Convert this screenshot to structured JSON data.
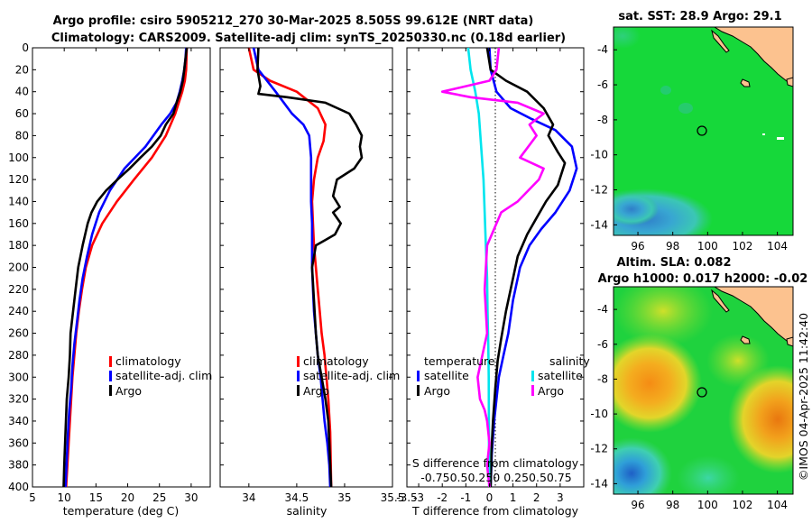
{
  "title_line1": "Argo profile: csiro 5905212_270 30-Mar-2025 8.505S 99.612E (NRT data)",
  "title_line2": "Climatology: CARS2009. Satellite-adj clim: synTS_20250330.nc (0.18d earlier)",
  "chart_data": [
    {
      "type": "line",
      "name": "temperature",
      "xlabel": "temperature (deg C)",
      "ylabel": "",
      "xlim": [
        5,
        33
      ],
      "ylim": [
        0,
        400
      ],
      "xticks": [
        5,
        10,
        15,
        20,
        25,
        30
      ],
      "yticks": [
        0,
        20,
        40,
        60,
        80,
        100,
        120,
        140,
        160,
        180,
        200,
        220,
        240,
        260,
        280,
        300,
        320,
        340,
        360,
        380,
        400
      ],
      "legend": [
        "climatology",
        "satellite-adj. clim",
        "Argo"
      ],
      "series": [
        {
          "name": "climatology",
          "color": "#ff0000",
          "x": [
            29.3,
            29.2,
            29.0,
            28.6,
            27.5,
            26.0,
            23.8,
            21.0,
            18.3,
            16.0,
            14.4,
            13.4,
            12.8,
            12.3,
            11.9,
            11.6,
            11.3,
            11.1,
            10.9,
            10.7,
            10.5,
            10.3
          ],
          "y": [
            0,
            20,
            30,
            40,
            60,
            80,
            100,
            120,
            140,
            160,
            180,
            200,
            220,
            240,
            260,
            280,
            300,
            320,
            340,
            360,
            380,
            400
          ]
        },
        {
          "name": "satellite-adj. clim",
          "color": "#0000ff",
          "x": [
            29.2,
            29.1,
            28.9,
            28.6,
            28.2,
            27.7,
            26.7,
            25.3,
            22.8,
            19.5,
            17.2,
            15.5,
            14.4,
            13.6,
            12.9,
            12.4,
            12.0,
            11.6,
            11.3,
            11.1,
            10.8,
            10.6,
            10.4,
            10.2
          ],
          "y": [
            0,
            10,
            20,
            30,
            40,
            50,
            60,
            70,
            90,
            110,
            130,
            150,
            170,
            190,
            210,
            230,
            250,
            270,
            290,
            310,
            330,
            350,
            375,
            400
          ]
        },
        {
          "name": "Argo",
          "color": "#000000",
          "x": [
            29.3,
            29.1,
            28.9,
            28.7,
            28.3,
            27.7,
            27.2,
            26.0,
            25.2,
            23.8,
            22.0,
            20.3,
            18.4,
            16.6,
            15.2,
            14.3,
            13.7,
            12.9,
            12.2,
            11.8,
            11.4,
            11.0,
            10.9,
            10.7,
            10.4,
            10.2,
            10.0,
            9.9
          ],
          "y": [
            0,
            10,
            20,
            30,
            40,
            50,
            60,
            70,
            80,
            90,
            100,
            110,
            120,
            130,
            140,
            150,
            160,
            180,
            200,
            220,
            240,
            260,
            280,
            300,
            320,
            350,
            380,
            400
          ]
        }
      ]
    },
    {
      "type": "line",
      "name": "salinity",
      "xlabel": "salinity",
      "xlim": [
        33.7,
        35.5
      ],
      "ylim": [
        0,
        400
      ],
      "xticks": [
        34,
        34.5,
        35
      ],
      "xtick_labels": [
        "34",
        "34.5",
        "35"
      ],
      "legend": [
        "climatology",
        "satellite-adj. clim",
        "Argo"
      ],
      "series": [
        {
          "name": "climatology",
          "color": "#ff0000",
          "x": [
            34.0,
            34.05,
            34.22,
            34.5,
            34.72,
            34.8,
            34.78,
            34.72,
            34.68,
            34.66,
            34.67,
            34.68,
            34.7,
            34.72,
            34.74,
            34.76,
            34.79,
            34.81,
            34.83,
            34.85,
            34.86
          ],
          "y": [
            0,
            20,
            30,
            40,
            55,
            70,
            85,
            100,
            120,
            140,
            160,
            180,
            200,
            220,
            240,
            260,
            280,
            300,
            320,
            350,
            400
          ]
        },
        {
          "name": "satellite-adj. clim",
          "color": "#0000ff",
          "x": [
            34.05,
            34.1,
            34.28,
            34.45,
            34.57,
            34.63,
            34.65,
            34.65,
            34.65,
            34.66,
            34.66,
            34.66,
            34.67,
            34.68,
            34.7,
            34.72,
            34.75,
            34.77,
            34.79,
            34.82,
            34.84,
            34.85
          ],
          "y": [
            0,
            20,
            40,
            60,
            70,
            80,
            100,
            120,
            140,
            160,
            180,
            200,
            220,
            240,
            260,
            280,
            300,
            320,
            340,
            360,
            380,
            400
          ]
        },
        {
          "name": "Argo",
          "color": "#000000",
          "x": [
            34.1,
            34.09,
            34.12,
            34.1,
            34.4,
            34.8,
            35.05,
            35.12,
            35.18,
            35.16,
            35.18,
            35.1,
            34.92,
            34.88,
            34.95,
            34.88,
            34.96,
            34.9,
            34.8,
            34.7,
            34.66,
            34.68,
            34.7,
            34.72,
            34.76,
            34.8,
            34.83,
            34.84,
            34.85,
            34.86
          ],
          "y": [
            0,
            20,
            35,
            42,
            45,
            50,
            60,
            70,
            80,
            90,
            100,
            110,
            120,
            135,
            145,
            150,
            160,
            170,
            175,
            180,
            200,
            230,
            260,
            280,
            300,
            320,
            340,
            360,
            380,
            400
          ]
        }
      ]
    },
    {
      "type": "line",
      "name": "difference",
      "xlabel": "T difference from climatology",
      "xlim": [
        -3.5,
        4
      ],
      "ylim": [
        0,
        400
      ],
      "xticks": [
        -3,
        -2,
        -1,
        0,
        1,
        2,
        3
      ],
      "xtick_labels": [
        "-3",
        "-2",
        "-1",
        "0",
        "1",
        "2",
        "3"
      ],
      "top_label": "S difference from climatology",
      "top_ticks": "-0.750.50.250 0.250.50.75",
      "legend_left_title": "temperature",
      "legend_right_title": "salinity",
      "legend": [
        "satellite",
        "Argo",
        "satellite",
        "Argo"
      ],
      "series": [
        {
          "name": "temperature satellite",
          "color": "#0000ff",
          "x": [
            0.0,
            0.05,
            0.3,
            0.9,
            1.8,
            2.8,
            3.5,
            3.7,
            3.4,
            2.8,
            2.2,
            1.7,
            1.3,
            1.0,
            0.8,
            0.6,
            0.4,
            0.3,
            0.2,
            0.1,
            0.05
          ],
          "y": [
            0,
            20,
            40,
            55,
            65,
            75,
            90,
            110,
            130,
            150,
            165,
            180,
            200,
            230,
            260,
            280,
            300,
            320,
            340,
            370,
            400
          ]
        },
        {
          "name": "temperature Argo",
          "color": "#000000",
          "x": [
            -0.1,
            0.05,
            0.7,
            1.6,
            2.3,
            2.7,
            2.5,
            2.9,
            3.2,
            2.9,
            2.4,
            2.0,
            1.6,
            1.2,
            1.0,
            0.7,
            0.5,
            0.35,
            0.25,
            0.15,
            0.08,
            0.05
          ],
          "y": [
            0,
            20,
            30,
            40,
            55,
            70,
            80,
            95,
            105,
            125,
            140,
            155,
            170,
            190,
            210,
            240,
            265,
            285,
            310,
            340,
            370,
            400
          ]
        },
        {
          "name": "salinity satellite",
          "color": "#00e5ee",
          "x": [
            -0.9,
            -0.8,
            -0.6,
            -0.45,
            -0.35,
            -0.25,
            -0.2,
            -0.15,
            -0.1,
            -0.08,
            -0.05,
            -0.03,
            -0.02,
            -0.01
          ],
          "y": [
            0,
            20,
            40,
            60,
            90,
            120,
            150,
            180,
            210,
            240,
            270,
            300,
            350,
            400
          ]
        },
        {
          "name": "salinity Argo",
          "color": "#ff00ff",
          "x": [
            0.4,
            0.3,
            0.0,
            -2.0,
            -0.8,
            1.2,
            2.3,
            1.7,
            2.0,
            1.3,
            2.3,
            2.1,
            1.2,
            0.5,
            -0.1,
            -0.2,
            -0.1,
            -0.5,
            -0.4,
            -0.2,
            -0.1,
            0.0,
            -0.1,
            0.0
          ],
          "y": [
            0,
            20,
            30,
            40,
            45,
            50,
            60,
            70,
            80,
            100,
            110,
            120,
            140,
            150,
            180,
            220,
            260,
            300,
            320,
            330,
            340,
            360,
            380,
            400
          ]
        }
      ]
    },
    {
      "type": "heatmap",
      "name": "sst_map",
      "title": "sat. SST: 28.9 Argo: 29.1",
      "xticks": [
        96,
        98,
        100,
        102,
        104
      ],
      "yticks": [
        -4,
        -6,
        -8,
        -10,
        -12,
        -14
      ],
      "xlim": [
        94.6,
        104.9
      ],
      "ylim": [
        -14.6,
        -2.7
      ],
      "argo_position": [
        99.612,
        -8.505
      ]
    },
    {
      "type": "heatmap",
      "name": "sla_map",
      "title_line1": "Altim. SLA: 0.082",
      "title_line2": "Argo h1000: 0.017 h2000: -0.02",
      "xticks": [
        96,
        98,
        100,
        102,
        104
      ],
      "yticks": [
        -4,
        -6,
        -8,
        -10,
        -12,
        -14
      ],
      "xlim": [
        94.6,
        104.9
      ],
      "ylim": [
        -14.6,
        -2.7
      ],
      "argo_position": [
        99.612,
        -8.505
      ]
    }
  ],
  "watermark": "©IMOS 04-Apr-2025 11:42:40",
  "colors": {
    "land": "#fcc28f",
    "sst_green": "#16d83a",
    "sst_blue": "#35c3ba",
    "sla_green": "#1fd23e",
    "sla_orange": "#f09a18"
  }
}
